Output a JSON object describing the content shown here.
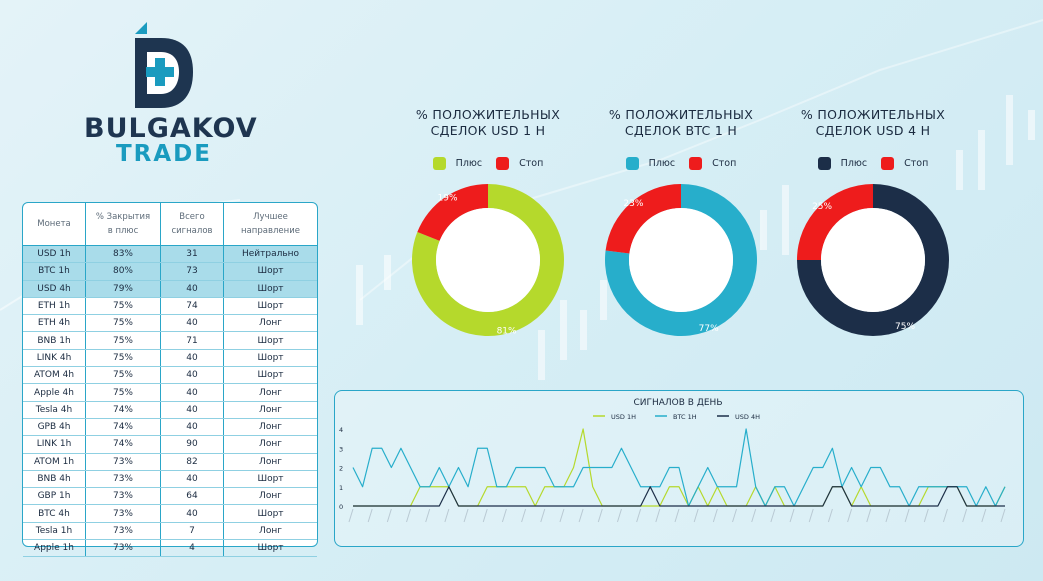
{
  "logo": {
    "top": "BULGAKOV",
    "bottom": "TRADE"
  },
  "table": {
    "headers": {
      "coin": "Монета",
      "pct_1": "% Закрытия",
      "pct_2": "в плюс",
      "sig_1": "Всего",
      "sig_2": "сигналов",
      "dir_1": "Лучшее",
      "dir_2": "направление"
    },
    "rows": [
      {
        "coin": "USD 1h",
        "pct": "83%",
        "signals": "31",
        "dir": "Нейтрально"
      },
      {
        "coin": "BTC 1h",
        "pct": "80%",
        "signals": "73",
        "dir": "Шорт"
      },
      {
        "coin": "USD 4h",
        "pct": "79%",
        "signals": "40",
        "dir": "Шорт"
      },
      {
        "coin": "ETH 1h",
        "pct": "75%",
        "signals": "74",
        "dir": "Шорт"
      },
      {
        "coin": "ETH 4h",
        "pct": "75%",
        "signals": "40",
        "dir": "Лонг"
      },
      {
        "coin": "BNB 1h",
        "pct": "75%",
        "signals": "71",
        "dir": "Шорт"
      },
      {
        "coin": "LINK 4h",
        "pct": "75%",
        "signals": "40",
        "dir": "Шорт"
      },
      {
        "coin": "ATOM 4h",
        "pct": "75%",
        "signals": "40",
        "dir": "Шорт"
      },
      {
        "coin": "Apple 4h",
        "pct": "75%",
        "signals": "40",
        "dir": "Лонг"
      },
      {
        "coin": "Tesla 4h",
        "pct": "74%",
        "signals": "40",
        "dir": "Лонг"
      },
      {
        "coin": "GPB 4h",
        "pct": "74%",
        "signals": "40",
        "dir": "Лонг"
      },
      {
        "coin": "LINK 1h",
        "pct": "74%",
        "signals": "90",
        "dir": "Лонг"
      },
      {
        "coin": "ATOM 1h",
        "pct": "73%",
        "signals": "82",
        "dir": "Лонг"
      },
      {
        "coin": "BNB 4h",
        "pct": "73%",
        "signals": "40",
        "dir": "Шорт"
      },
      {
        "coin": "GBP 1h",
        "pct": "73%",
        "signals": "64",
        "dir": "Лонг"
      },
      {
        "coin": "BTC 4h",
        "pct": "73%",
        "signals": "40",
        "dir": "Шорт"
      },
      {
        "coin": "Tesla 1h",
        "pct": "73%",
        "signals": "7",
        "dir": "Лонг"
      },
      {
        "coin": "Apple 1h",
        "pct": "73%",
        "signals": "4",
        "dir": "Шорт"
      }
    ],
    "highlight_rows": 3
  },
  "chart_data": [
    {
      "type": "pie",
      "title_1": "% ПОЛОЖИТЕЛЬНЫХ",
      "title_2": "СДЕЛОК USD 1 H",
      "labels": [
        "Плюс",
        "Стоп"
      ],
      "values": [
        81,
        19
      ],
      "value_labels": [
        "81%",
        "19%"
      ],
      "colors": [
        "#b5d92c",
        "#ee1c1c"
      ]
    },
    {
      "type": "pie",
      "title_1": "% ПОЛОЖИТЕЛЬНЫХ",
      "title_2": "СДЕЛОК BTC 1 H",
      "labels": [
        "Плюс",
        "Стоп"
      ],
      "values": [
        77,
        23
      ],
      "value_labels": [
        "77%",
        "23%"
      ],
      "colors": [
        "#27aecb",
        "#ee1c1c"
      ]
    },
    {
      "type": "pie",
      "title_1": "% ПОЛОЖИТЕЛЬНЫХ",
      "title_2": "СДЕЛОК USD 4 H",
      "labels": [
        "Плюс",
        "Стоп"
      ],
      "values": [
        75,
        25
      ],
      "value_labels": [
        "75%",
        "25%"
      ],
      "colors": [
        "#1c2e48",
        "#ee1c1c"
      ]
    },
    {
      "type": "line",
      "title": "СИГНАЛОВ В ДЕНЬ",
      "ylim": [
        0,
        4
      ],
      "yticks": [
        "0",
        "1",
        "2",
        "3",
        "4"
      ],
      "series": [
        {
          "name": "USD 1H",
          "color": "#b5d92c",
          "values": [
            0,
            0,
            0,
            0,
            0,
            0,
            0,
            1,
            1,
            1,
            1,
            0,
            0,
            0,
            1,
            1,
            1,
            1,
            1,
            0,
            1,
            1,
            1,
            2,
            4,
            1,
            0,
            0,
            0,
            0,
            0,
            0,
            0,
            1,
            1,
            0,
            1,
            0,
            1,
            0,
            0,
            0,
            1,
            0,
            1,
            0,
            0,
            0,
            0,
            0,
            1,
            1,
            0,
            1,
            0,
            0,
            0,
            0,
            0,
            0,
            1,
            1,
            1,
            1,
            0,
            0,
            0,
            0,
            1
          ]
        },
        {
          "name": "BTC 1H",
          "color": "#27aecb",
          "values": [
            2,
            1,
            3,
            3,
            2,
            3,
            2,
            1,
            1,
            2,
            1,
            2,
            1,
            3,
            3,
            1,
            1,
            2,
            2,
            2,
            2,
            1,
            1,
            1,
            2,
            2,
            2,
            2,
            3,
            2,
            1,
            1,
            1,
            2,
            2,
            0,
            1,
            2,
            1,
            1,
            1,
            4,
            1,
            0,
            1,
            1,
            0,
            1,
            2,
            2,
            3,
            1,
            2,
            1,
            2,
            2,
            1,
            1,
            0,
            1,
            1,
            1,
            1,
            1,
            1,
            0,
            1,
            0,
            1
          ]
        },
        {
          "name": "USD 4H",
          "color": "#1c2e48",
          "values": [
            0,
            0,
            0,
            0,
            0,
            0,
            0,
            0,
            0,
            0,
            1,
            0,
            0,
            0,
            0,
            0,
            0,
            0,
            0,
            0,
            0,
            0,
            0,
            0,
            0,
            0,
            0,
            0,
            0,
            0,
            0,
            1,
            0,
            0,
            0,
            0,
            0,
            0,
            0,
            0,
            0,
            0,
            0,
            0,
            0,
            0,
            0,
            0,
            0,
            0,
            1,
            1,
            0,
            0,
            0,
            0,
            0,
            0,
            0,
            0,
            0,
            0,
            1,
            1,
            0,
            0,
            0,
            0,
            0
          ]
        }
      ]
    }
  ]
}
